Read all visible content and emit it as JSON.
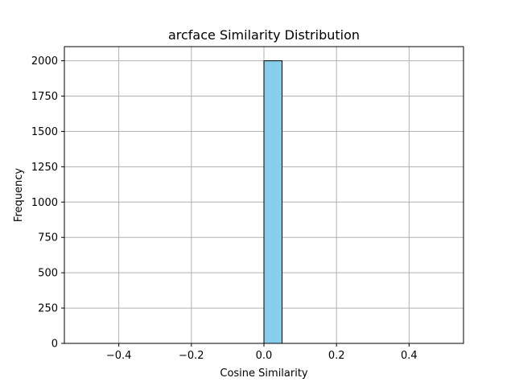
{
  "chart_data": {
    "type": "bar",
    "title": "arcface Similarity Distribution",
    "xlabel": "Cosine Similarity",
    "ylabel": "Frequency",
    "xlim": [
      -0.55,
      0.55
    ],
    "ylim": [
      0,
      2100
    ],
    "x_ticks": [
      -0.4,
      -0.2,
      0.0,
      0.2,
      0.4
    ],
    "x_tick_labels": [
      "−0.4",
      "−0.2",
      "0.0",
      "0.2",
      "0.4"
    ],
    "y_ticks": [
      0,
      250,
      500,
      750,
      1000,
      1250,
      1500,
      1750,
      2000
    ],
    "y_tick_labels": [
      "0",
      "250",
      "500",
      "750",
      "1000",
      "1250",
      "1500",
      "1750",
      "2000"
    ],
    "grid": true,
    "bin_edges": [
      -0.5,
      -0.45,
      -0.4,
      -0.35,
      -0.3,
      -0.25,
      -0.2,
      -0.15,
      -0.1,
      -0.05,
      0.0,
      0.05,
      0.1,
      0.15,
      0.2,
      0.25,
      0.3,
      0.35,
      0.4,
      0.45,
      0.5
    ],
    "values": [
      0,
      0,
      0,
      0,
      0,
      0,
      0,
      0,
      0,
      0,
      2000,
      0,
      0,
      0,
      0,
      0,
      0,
      0,
      0,
      0
    ],
    "bar_color": "#87ceeb",
    "edge_color": "#000000"
  }
}
